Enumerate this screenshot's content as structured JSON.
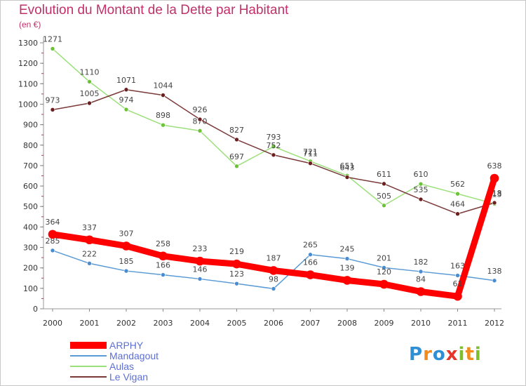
{
  "chart_data": {
    "type": "line",
    "title": "Evolution du Montant de la Dette par Habitant",
    "subtitle": "(en €)",
    "x": [
      "2000",
      "2001",
      "2002",
      "2003",
      "2004",
      "2005",
      "2006",
      "2007",
      "2008",
      "2009",
      "2010",
      "2011",
      "2012"
    ],
    "ylim": [
      0,
      1300
    ],
    "yticks": [
      0,
      100,
      200,
      300,
      400,
      500,
      600,
      700,
      800,
      900,
      1000,
      1100,
      1200,
      1300
    ],
    "grid": false,
    "legend_position": "bottom-left",
    "series": [
      {
        "name": "Mandagout",
        "color": "#5b9bd5",
        "point_color": "#4a8cd0",
        "values": [
          285,
          222,
          185,
          166,
          146,
          123,
          98,
          265,
          245,
          201,
          182,
          163,
          138
        ],
        "labels": [
          "285",
          "222",
          "185",
          "166",
          "146",
          "123",
          "98",
          "265",
          "245",
          "201",
          "182",
          "163",
          "138"
        ]
      },
      {
        "name": "Aulas",
        "color": "#9be07a",
        "point_color": "#6cc33a",
        "values": [
          1271,
          1110,
          974,
          898,
          870,
          697,
          793,
          721,
          651,
          505,
          610,
          562,
          513
        ],
        "labels": [
          "1271",
          "1110",
          "974",
          "898",
          "870",
          "697",
          "793",
          "721",
          "651",
          "505",
          "610",
          "562",
          "513"
        ]
      },
      {
        "name": "Le Vigan",
        "color": "#7a3a3a",
        "point_color": "#6b1f1f",
        "values": [
          973,
          1005,
          1071,
          1044,
          926,
          827,
          752,
          711,
          643,
          611,
          535,
          464,
          518
        ],
        "labels": [
          "973",
          "1005",
          "1071",
          "1044",
          "926",
          "827",
          "752",
          "711",
          "643",
          "611",
          "535",
          "464",
          "518"
        ]
      },
      {
        "name": "ARPHY",
        "color": "#ff0000",
        "point_color": "#ff0000",
        "values": [
          364,
          337,
          307,
          258,
          233,
          219,
          187,
          166,
          139,
          120,
          84,
          61,
          638
        ],
        "labels": [
          "364",
          "337",
          "307",
          "258",
          "233",
          "219",
          "187",
          "166",
          "139",
          "120",
          "84",
          "61",
          "638"
        ]
      }
    ],
    "legend_order": [
      "ARPHY",
      "Mandagout",
      "Aulas",
      "Le Vigan"
    ]
  },
  "logo": {
    "letters": [
      "P",
      "r",
      "o",
      "x",
      "i",
      "t",
      "i"
    ],
    "colors": [
      "#2f8fd6",
      "#f28c1e",
      "#2f8fd6",
      "#e8352c",
      "#7fbf2e",
      "#f28c1e",
      "#7fbf2e"
    ]
  }
}
